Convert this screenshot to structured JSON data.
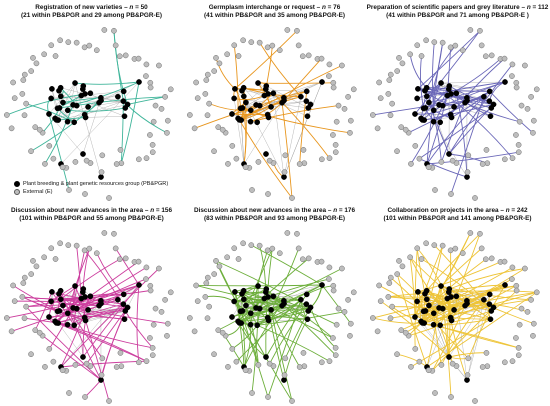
{
  "colors": {
    "internal_node": "#000000",
    "external_node": "#bdbdbd",
    "external_stroke": "#6e6e6e",
    "base_edge": "#9a9a9a"
  },
  "legend": {
    "internal_label": "Plant breeding & plant genetic resources group (PB&PGR)",
    "external_label": "External (E)"
  },
  "panels": [
    {
      "title_main": "Registration of new varieties – ",
      "title_n": "n",
      "title_value": " = 50",
      "subtitle": "(21 within PB&PGR and 29 among PB&PGR-E)",
      "edge_color": "#3fb59a",
      "n_edges": 50
    },
    {
      "title_main": "Germplasm interchange or request – ",
      "title_n": "n",
      "title_value": " = 76",
      "subtitle": "(41 within PB&PGR and 35 among PB&PGR-E)",
      "edge_color": "#e8961e",
      "n_edges": 76
    },
    {
      "title_main": "Preparation of scientific papers and grey literature – ",
      "title_n": "n",
      "title_value": " = 112",
      "subtitle": "(41 within PB&PGR and 71 among PB&PGR-E )",
      "edge_color": "#6a67b8",
      "n_edges": 112
    },
    {
      "title_main": "Discussion about new advances in the area – ",
      "title_n": "n",
      "title_value": " = 156",
      "subtitle": "(101 within PB&PGR and 55 among PB&PGR-E)",
      "edge_color": "#cc3e9e",
      "n_edges": 156
    },
    {
      "title_main": "Discussion about new advances in the area – ",
      "title_n": "n",
      "title_value": " = 176",
      "subtitle": "(83 within PB&PGR and 93 among PB&PGR-E)",
      "edge_color": "#6cae3a",
      "n_edges": 176
    },
    {
      "title_main": "Collaboration on projects in the area – ",
      "title_n": "n",
      "title_value": " = 242",
      "subtitle": "(101 within PB&PGR and 141 among PB&PGR-E)",
      "edge_color": "#eec437",
      "n_edges": 242
    }
  ]
}
